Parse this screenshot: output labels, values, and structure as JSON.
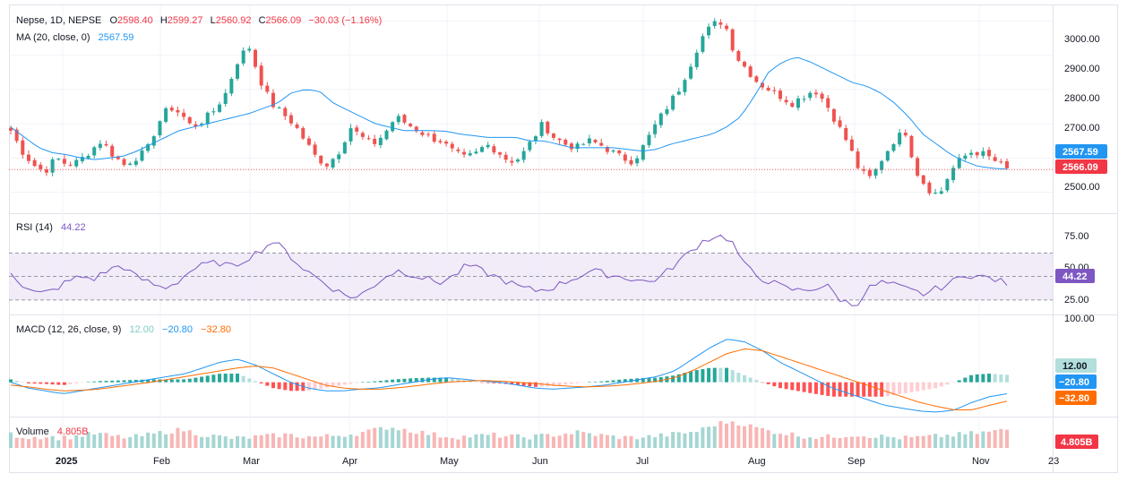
{
  "colors": {
    "up": "#26a69a",
    "down": "#ef5350",
    "ma": "#2196f3",
    "rsi": "#7e57c2",
    "rsi_band": "#ede7f6",
    "macd_line": "#2196f3",
    "signal_line": "#ff6d00",
    "hist_up_strong": "#26a69a",
    "hist_up_weak": "#b2dfdb",
    "hist_down_strong": "#ff5252",
    "hist_down_weak": "#ffcdd2",
    "vol_up": "#a5d6d3",
    "vol_down": "#f7b6b5",
    "grid": "#f0f3fa",
    "border": "#e0e3eb"
  },
  "price_legend": {
    "symbol": "Nepse, 1D, NEPSE",
    "o_label": "O",
    "o_value": "2598.40",
    "h_label": "H",
    "h_value": "2599.27",
    "l_label": "L",
    "l_value": "2560.92",
    "c_label": "C",
    "c_value": "2566.09",
    "change": "−30.03 (−1.16%)"
  },
  "ma_legend": {
    "label": "MA (20, close, 0)",
    "value": "2567.59"
  },
  "rsi_legend": {
    "label": "RSI (14)",
    "value": "44.22"
  },
  "macd_legend": {
    "label": "MACD (12, 26, close, 9)",
    "hist": "12.00",
    "macd": "−20.80",
    "signal": "−32.80"
  },
  "volume_legend": {
    "label": "Volume",
    "value": "4.805B"
  },
  "price_axis": {
    "ticks": [
      "3000.00",
      "2900.00",
      "2800.00",
      "2700.00",
      "2500.00"
    ],
    "ma_badge": "2567.59",
    "last_badge": "2566.09"
  },
  "rsi_axis": {
    "ticks": [
      "75.00",
      "50.00",
      "25.00"
    ],
    "badge": "44.22"
  },
  "macd_axis": {
    "ticks": [
      "100.00"
    ],
    "hist_badge": "12.00",
    "macd_badge": "−20.80",
    "signal_badge": "−32.80"
  },
  "volume_axis": {
    "badge": "4.805B"
  },
  "time_axis": {
    "labels": [
      "2025",
      "Feb",
      "Mar",
      "Apr",
      "May",
      "Jun",
      "Jul",
      "Aug",
      "Sep",
      "Nov",
      "23"
    ]
  },
  "chart_data": {
    "type": "candlestick",
    "x_labels": [
      "2025",
      "Feb",
      "Mar",
      "Apr",
      "May",
      "Jun",
      "Jul",
      "Aug",
      "Sep",
      "Nov",
      "23"
    ],
    "price_ylim": [
      2470,
      3030
    ],
    "close_anchors": [
      2680,
      2620,
      2580,
      2560,
      2600,
      2580,
      2590,
      2620,
      2650,
      2610,
      2580,
      2600,
      2620,
      2700,
      2750,
      2730,
      2690,
      2710,
      2740,
      2790,
      2880,
      2930,
      2830,
      2760,
      2730,
      2700,
      2650,
      2600,
      2580,
      2620,
      2690,
      2660,
      2640,
      2670,
      2720,
      2700,
      2680,
      2660,
      2650,
      2620,
      2600,
      2610,
      2640,
      2620,
      2590,
      2600,
      2650,
      2700,
      2660,
      2640,
      2630,
      2650,
      2640,
      2620,
      2600,
      2590,
      2640,
      2700,
      2750,
      2800,
      2870,
      2950,
      2990,
      3000,
      2900,
      2860,
      2820,
      2800,
      2780,
      2760,
      2780,
      2800,
      2760,
      2700,
      2640,
      2560,
      2540,
      2600,
      2650,
      2680,
      2560,
      2510,
      2490,
      2560,
      2600,
      2620,
      2610,
      2590,
      2566
    ],
    "ma_anchors": [
      2690,
      2660,
      2630,
      2615,
      2610,
      2600,
      2595,
      2600,
      2605,
      2620,
      2640,
      2660,
      2680,
      2690,
      2700,
      2710,
      2720,
      2730,
      2745,
      2760,
      2790,
      2800,
      2795,
      2760,
      2740,
      2720,
      2700,
      2690,
      2680,
      2680,
      2680,
      2678,
      2670,
      2665,
      2660,
      2660,
      2660,
      2650,
      2650,
      2640,
      2630,
      2630,
      2630,
      2630,
      2625,
      2620,
      2625,
      2640,
      2650,
      2660,
      2670,
      2690,
      2720,
      2780,
      2850,
      2880,
      2895,
      2880,
      2860,
      2840,
      2820,
      2810,
      2790,
      2760,
      2720,
      2670,
      2640,
      2610,
      2590,
      2575,
      2570,
      2567
    ],
    "rsi_ylim": [
      20,
      100
    ],
    "rsi_levels": [
      70,
      50,
      30
    ],
    "rsi_anchors": [
      55,
      40,
      35,
      38,
      45,
      50,
      48,
      55,
      60,
      50,
      45,
      40,
      45,
      55,
      60,
      62,
      58,
      65,
      72,
      80,
      70,
      58,
      50,
      42,
      35,
      32,
      40,
      50,
      55,
      52,
      48,
      45,
      50,
      60,
      55,
      50,
      45,
      40,
      38,
      40,
      45,
      50,
      55,
      52,
      50,
      48,
      45,
      50,
      60,
      70,
      80,
      85,
      82,
      60,
      50,
      45,
      40,
      38,
      40,
      42,
      30,
      25,
      40,
      45,
      42,
      38,
      35,
      40,
      45,
      52,
      50,
      48,
      44
    ],
    "macd_ylim": [
      -55,
      110
    ],
    "macd_anchors": [
      0,
      -10,
      -15,
      -20,
      -15,
      -10,
      -5,
      0,
      5,
      10,
      15,
      25,
      35,
      40,
      30,
      15,
      0,
      -10,
      -15,
      -15,
      -12,
      -10,
      -5,
      0,
      5,
      8,
      5,
      2,
      0,
      -5,
      -10,
      -12,
      -10,
      -8,
      -5,
      0,
      5,
      10,
      20,
      40,
      60,
      75,
      70,
      55,
      35,
      20,
      5,
      -10,
      -20,
      -30,
      -40,
      -45,
      -50,
      -52,
      -48,
      -35,
      -25,
      -20
    ],
    "signal_anchors": [
      -5,
      -8,
      -12,
      -15,
      -14,
      -12,
      -8,
      -4,
      0,
      5,
      10,
      15,
      20,
      25,
      28,
      25,
      15,
      5,
      -5,
      -10,
      -12,
      -12,
      -10,
      -7,
      -3,
      0,
      2,
      3,
      2,
      0,
      -2,
      -5,
      -7,
      -8,
      -7,
      -5,
      -2,
      2,
      8,
      20,
      35,
      50,
      58,
      55,
      45,
      35,
      25,
      15,
      5,
      -5,
      -15,
      -25,
      -35,
      -42,
      -48,
      -48,
      -40,
      -33
    ],
    "volume_anchors": [
      3.5,
      2.8,
      3.0,
      2.6,
      3.2,
      3.8,
      3.0,
      2.7,
      3.4,
      4.2,
      4.8,
      3.6,
      3.0,
      2.5,
      2.8,
      3.1,
      3.5,
      3.0,
      2.9,
      3.3,
      3.7,
      4.5,
      5.5,
      4.8,
      4.0,
      3.2,
      2.9,
      3.1,
      3.4,
      3.0,
      2.8,
      3.2,
      3.6,
      4.1,
      3.5,
      3.0,
      2.7,
      2.9,
      3.3,
      3.8,
      4.4,
      6.2,
      7.0,
      5.8,
      4.6,
      3.9,
      3.2,
      2.8,
      3.0,
      3.5,
      3.2,
      2.9,
      2.6,
      2.8,
      3.1,
      3.4,
      3.8,
      4.2,
      4.805
    ]
  }
}
